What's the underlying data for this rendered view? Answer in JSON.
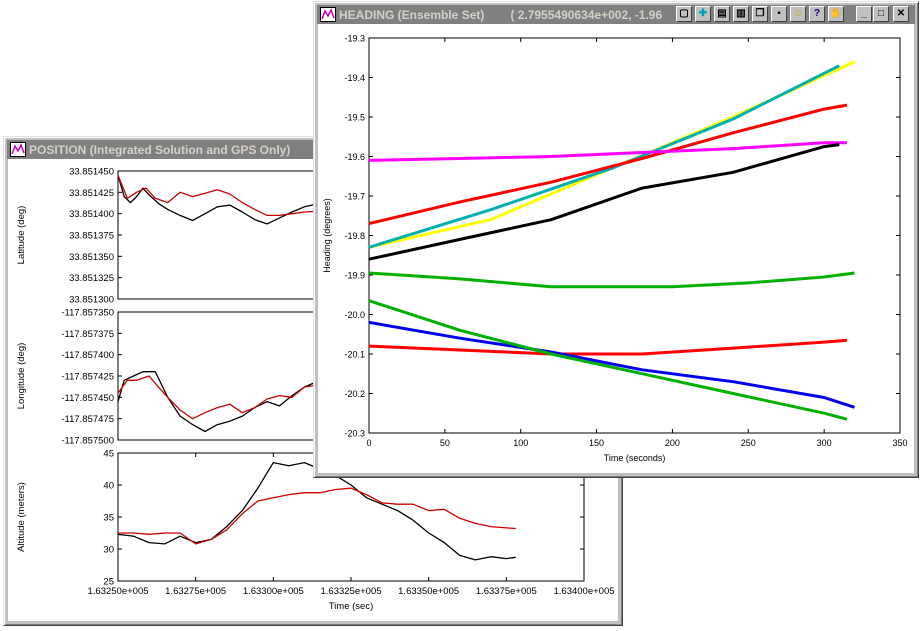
{
  "position_window": {
    "title": "POSITION (Integrated Solution and GPS Only)"
  },
  "heading_window": {
    "title": "HEADING (Ensemble Set)",
    "coord_readout": "( 2.7955490634e+002, -1.96",
    "toolbar_icons": [
      "print-preview-icon",
      "zoom-plus-icon",
      "properties-icon",
      "print-icon",
      "copy-icon",
      "save-icon",
      "smiley-icon",
      "help-icon",
      "hand-icon"
    ],
    "window_icons": [
      "minimize-icon",
      "maximize-icon",
      "close-icon"
    ]
  },
  "chart_data": [
    {
      "id": "latitude",
      "type": "line",
      "ylabel": "Latitude (deg)",
      "ylim": [
        33.8513,
        33.85145
      ],
      "yticks": [
        "33.851450",
        "33.851425",
        "33.851400",
        "33.851375",
        "33.851350",
        "33.851325",
        "33.851300"
      ],
      "ytick_values": [
        33.85145,
        33.851425,
        33.8514,
        33.851375,
        33.85135,
        33.851325,
        33.8513
      ],
      "xlim": [
        163250,
        163400
      ],
      "series": [
        {
          "color": "#000000",
          "points": [
            [
              163250,
              33.851445
            ],
            [
              163252,
              33.85142
            ],
            [
              163254,
              33.851413
            ],
            [
              163256,
              33.85142
            ],
            [
              163258,
              33.85143
            ],
            [
              163260,
              33.851422
            ],
            [
              163263,
              33.851412
            ],
            [
              163266,
              33.851405
            ],
            [
              163270,
              33.851398
            ],
            [
              163274,
              33.851392
            ],
            [
              163278,
              33.8514
            ],
            [
              163282,
              33.851408
            ],
            [
              163286,
              33.85141
            ],
            [
              163290,
              33.851402
            ],
            [
              163294,
              33.851393
            ],
            [
              163298,
              33.851388
            ],
            [
              163302,
              33.851395
            ],
            [
              163306,
              33.851402
            ],
            [
              163310,
              33.851408
            ],
            [
              163315,
              33.851412
            ],
            [
              163320,
              33.851417
            ],
            [
              163325,
              33.851418
            ],
            [
              163330,
              33.851416
            ],
            [
              163335,
              33.851414
            ],
            [
              163340,
              33.851413
            ],
            [
              163345,
              33.851413
            ]
          ]
        },
        {
          "color": "#cc0000",
          "points": [
            [
              163250,
              33.851445
            ],
            [
              163253,
              33.851418
            ],
            [
              163256,
              33.851425
            ],
            [
              163259,
              33.85143
            ],
            [
              163262,
              33.851418
            ],
            [
              163266,
              33.851413
            ],
            [
              163270,
              33.851425
            ],
            [
              163274,
              33.85142
            ],
            [
              163278,
              33.851424
            ],
            [
              163282,
              33.851428
            ],
            [
              163286,
              33.851423
            ],
            [
              163290,
              33.851413
            ],
            [
              163294,
              33.851405
            ],
            [
              163298,
              33.851398
            ],
            [
              163302,
              33.851398
            ],
            [
              163306,
              33.8514
            ],
            [
              163310,
              33.851402
            ],
            [
              163315,
              33.851403
            ],
            [
              163320,
              33.851404
            ],
            [
              163325,
              33.851405
            ],
            [
              163330,
              33.851408
            ],
            [
              163335,
              33.851411
            ],
            [
              163340,
              33.851413
            ],
            [
              163345,
              33.851413
            ]
          ]
        }
      ]
    },
    {
      "id": "longitude",
      "type": "line",
      "ylabel": "Longitude (deg)",
      "ylim": [
        -117.8575,
        -117.85735
      ],
      "yticks": [
        "-117.857350",
        "-117.857375",
        "-117.857400",
        "-117.857425",
        "-117.857450",
        "-117.857475",
        "-117.857500"
      ],
      "ytick_values": [
        -117.85735,
        -117.857375,
        -117.8574,
        -117.857425,
        -117.85745,
        -117.857475,
        -117.8575
      ],
      "xlim": [
        163250,
        163400
      ],
      "series": [
        {
          "color": "#000000",
          "points": [
            [
              163250,
              -117.857455
            ],
            [
              163252,
              -117.85743
            ],
            [
              163255,
              -117.857425
            ],
            [
              163258,
              -117.85742
            ],
            [
              163262,
              -117.85742
            ],
            [
              163266,
              -117.85745
            ],
            [
              163270,
              -117.857472
            ],
            [
              163274,
              -117.857482
            ],
            [
              163278,
              -117.85749
            ],
            [
              163282,
              -117.857482
            ],
            [
              163286,
              -117.857478
            ],
            [
              163290,
              -117.857472
            ],
            [
              163294,
              -117.857462
            ],
            [
              163298,
              -117.857455
            ],
            [
              163302,
              -117.85746
            ],
            [
              163306,
              -117.857448
            ],
            [
              163310,
              -117.857438
            ],
            [
              163315,
              -117.85743
            ],
            [
              163320,
              -117.85743
            ],
            [
              163325,
              -117.857428
            ],
            [
              163330,
              -117.857425
            ],
            [
              163335,
              -117.857425
            ],
            [
              163340,
              -117.85742
            ],
            [
              163345,
              -117.85742
            ]
          ]
        },
        {
          "color": "#cc0000",
          "points": [
            [
              163250,
              -117.857445
            ],
            [
              163253,
              -117.85743
            ],
            [
              163256,
              -117.85743
            ],
            [
              163260,
              -117.857425
            ],
            [
              163263,
              -117.857438
            ],
            [
              163266,
              -117.85745
            ],
            [
              163270,
              -117.857465
            ],
            [
              163274,
              -117.857475
            ],
            [
              163278,
              -117.857468
            ],
            [
              163282,
              -117.857462
            ],
            [
              163286,
              -117.857458
            ],
            [
              163290,
              -117.857468
            ],
            [
              163294,
              -117.857462
            ],
            [
              163298,
              -117.857452
            ],
            [
              163302,
              -117.857448
            ],
            [
              163306,
              -117.85745
            ],
            [
              163310,
              -117.857438
            ],
            [
              163315,
              -117.857435
            ],
            [
              163320,
              -117.857432
            ],
            [
              163325,
              -117.857428
            ],
            [
              163330,
              -117.857425
            ],
            [
              163335,
              -117.857422
            ],
            [
              163340,
              -117.857422
            ],
            [
              163345,
              -117.85742
            ]
          ]
        }
      ]
    },
    {
      "id": "altitude",
      "type": "line",
      "ylabel": "Altitude (meters)",
      "xlabel": "Time (sec)",
      "ylim": [
        25,
        45
      ],
      "yticks": [
        "45",
        "40",
        "35",
        "30",
        "25"
      ],
      "ytick_values": [
        45,
        40,
        35,
        30,
        25
      ],
      "xlim": [
        163250,
        163400
      ],
      "xticks": [
        "1.63250e+005",
        "1.63275e+005",
        "1.63300e+005",
        "1.63325e+005",
        "1.63350e+005",
        "1.63375e+005",
        "1.63400e+005"
      ],
      "xtick_values": [
        163250,
        163275,
        163300,
        163325,
        163350,
        163375,
        163400
      ],
      "series": [
        {
          "color": "#000000",
          "points": [
            [
              163250,
              32.3
            ],
            [
              163255,
              32
            ],
            [
              163260,
              31
            ],
            [
              163265,
              30.8
            ],
            [
              163270,
              32
            ],
            [
              163275,
              31
            ],
            [
              163280,
              31.5
            ],
            [
              163285,
              33.5
            ],
            [
              163290,
              36
            ],
            [
              163295,
              39.5
            ],
            [
              163300,
              43.5
            ],
            [
              163305,
              43
            ],
            [
              163310,
              43.5
            ],
            [
              163315,
              42.5
            ],
            [
              163320,
              41.5
            ],
            [
              163325,
              40
            ],
            [
              163330,
              38
            ],
            [
              163335,
              37
            ],
            [
              163340,
              36
            ],
            [
              163345,
              34.5
            ],
            [
              163350,
              32.5
            ],
            [
              163355,
              31
            ],
            [
              163360,
              29
            ],
            [
              163365,
              28.3
            ],
            [
              163370,
              28.8
            ],
            [
              163375,
              28.5
            ],
            [
              163378,
              28.7
            ]
          ]
        },
        {
          "color": "#cc0000",
          "points": [
            [
              163250,
              32.5
            ],
            [
              163255,
              32.5
            ],
            [
              163260,
              32.3
            ],
            [
              163265,
              32.5
            ],
            [
              163270,
              32.5
            ],
            [
              163275,
              30.8
            ],
            [
              163280,
              31.5
            ],
            [
              163285,
              33
            ],
            [
              163290,
              35.5
            ],
            [
              163295,
              37.5
            ],
            [
              163300,
              38
            ],
            [
              163305,
              38.5
            ],
            [
              163310,
              38.8
            ],
            [
              163315,
              38.8
            ],
            [
              163320,
              39.3
            ],
            [
              163325,
              39.5
            ],
            [
              163330,
              38.5
            ],
            [
              163335,
              37.2
            ],
            [
              163340,
              37
            ],
            [
              163345,
              37
            ],
            [
              163350,
              36
            ],
            [
              163355,
              36.2
            ],
            [
              163360,
              34.8
            ],
            [
              163365,
              34
            ],
            [
              163370,
              33.5
            ],
            [
              163375,
              33.3
            ],
            [
              163378,
              33.2
            ]
          ]
        }
      ]
    },
    {
      "id": "heading",
      "type": "line",
      "xlabel": "Time (seconds)",
      "ylabel": "Heading (degrees)",
      "xlim": [
        0,
        350
      ],
      "ylim": [
        -20.3,
        -19.3
      ],
      "xticks": [
        "0",
        "50",
        "100",
        "150",
        "200",
        "250",
        "300",
        "350"
      ],
      "xtick_values": [
        0,
        50,
        100,
        150,
        200,
        250,
        300,
        350
      ],
      "yticks": [
        "-19.3",
        "-19.4",
        "-19.5",
        "-19.6",
        "-19.7",
        "-19.8",
        "-19.9",
        "-20.0",
        "-20.1",
        "-20.2",
        "-20.3"
      ],
      "ytick_values": [
        -19.3,
        -19.4,
        -19.5,
        -19.6,
        -19.7,
        -19.8,
        -19.9,
        -20.0,
        -20.1,
        -20.2,
        -20.3
      ],
      "series": [
        {
          "color": "#ffff00",
          "points": [
            [
              0,
              -19.83
            ],
            [
              80,
              -19.76
            ],
            [
              160,
              -19.63
            ],
            [
              240,
              -19.5
            ],
            [
              320,
              -19.36
            ]
          ]
        },
        {
          "color": "#00b0b0",
          "points": [
            [
              0,
              -19.83
            ],
            [
              80,
              -19.735
            ],
            [
              160,
              -19.63
            ],
            [
              240,
              -19.505
            ],
            [
              310,
              -19.37
            ]
          ]
        },
        {
          "color": "#ff0000",
          "points": [
            [
              0,
              -19.77
            ],
            [
              60,
              -19.715
            ],
            [
              120,
              -19.665
            ],
            [
              180,
              -19.605
            ],
            [
              240,
              -19.54
            ],
            [
              300,
              -19.48
            ],
            [
              315,
              -19.47
            ]
          ]
        },
        {
          "color": "#ff00ff",
          "points": [
            [
              0,
              -19.61
            ],
            [
              60,
              -19.605
            ],
            [
              120,
              -19.6
            ],
            [
              180,
              -19.59
            ],
            [
              240,
              -19.58
            ],
            [
              300,
              -19.565
            ],
            [
              315,
              -19.565
            ]
          ]
        },
        {
          "color": "#000000",
          "points": [
            [
              0,
              -19.86
            ],
            [
              60,
              -19.81
            ],
            [
              120,
              -19.76
            ],
            [
              180,
              -19.68
            ],
            [
              240,
              -19.64
            ],
            [
              300,
              -19.575
            ],
            [
              310,
              -19.57
            ]
          ]
        },
        {
          "color": "#00b000",
          "points": [
            [
              0,
              -19.895
            ],
            [
              60,
              -19.91
            ],
            [
              120,
              -19.93
            ],
            [
              200,
              -19.93
            ],
            [
              250,
              -19.92
            ],
            [
              300,
              -19.905
            ],
            [
              320,
              -19.895
            ]
          ]
        },
        {
          "color": "#ff0000",
          "points": [
            [
              0,
              -20.08
            ],
            [
              60,
              -20.09
            ],
            [
              120,
              -20.1
            ],
            [
              180,
              -20.1
            ],
            [
              240,
              -20.085
            ],
            [
              300,
              -20.07
            ],
            [
              315,
              -20.065
            ]
          ]
        },
        {
          "color": "#0000ee",
          "points": [
            [
              0,
              -20.02
            ],
            [
              60,
              -20.06
            ],
            [
              120,
              -20.095
            ],
            [
              180,
              -20.14
            ],
            [
              240,
              -20.17
            ],
            [
              300,
              -20.21
            ],
            [
              320,
              -20.235
            ]
          ]
        },
        {
          "color": "#00b000",
          "points": [
            [
              0,
              -19.965
            ],
            [
              60,
              -20.04
            ],
            [
              120,
              -20.1
            ],
            [
              180,
              -20.15
            ],
            [
              240,
              -20.2
            ],
            [
              300,
              -20.25
            ],
            [
              315,
              -20.265
            ]
          ]
        }
      ]
    }
  ]
}
